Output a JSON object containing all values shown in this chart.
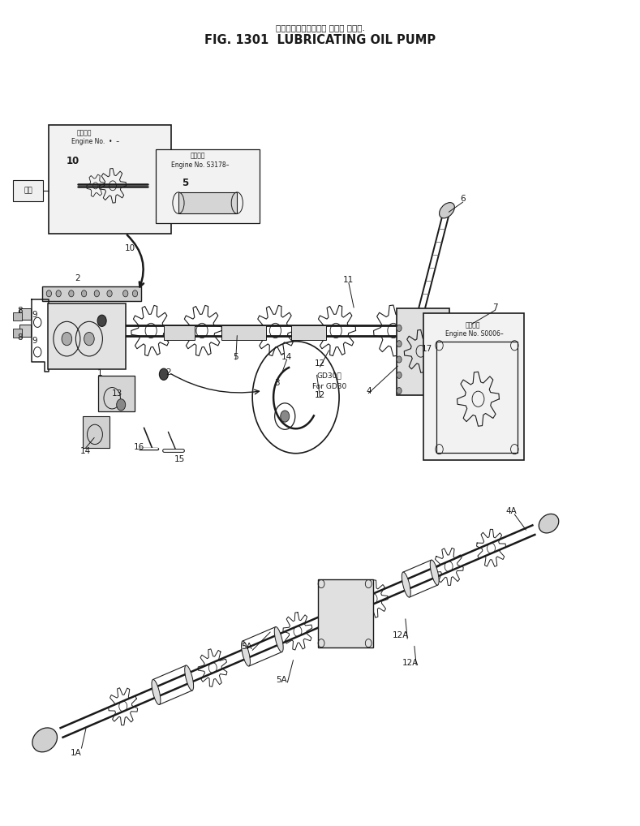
{
  "title_jp": "ルーブリケーティング オイル ポンプ.",
  "title_en": "FIG. 1301  LUBRICATING OIL PUMP",
  "bg_color": "#ffffff",
  "line_color": "#1a1a1a",
  "fig_width": 7.89,
  "fig_height": 10.18,
  "dpi": 100,
  "engine_no_box1": "適用番号\nEngine No.  •  –",
  "engine_no_box2": "適用番号\nEngine No. S3178–",
  "engine_no_box3": "適用番号\nEngine No. S0006–",
  "gd30_text1": "GD30用",
  "gd30_text2": "For GD30",
  "front_label": "前方"
}
